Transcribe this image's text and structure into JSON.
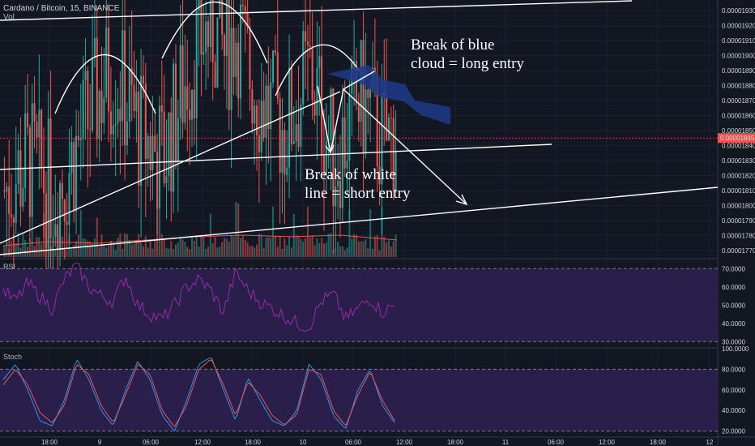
{
  "header": {
    "symbol_line": "Cardano / Bitcoin, 15, BINANCE",
    "vol_label": "Vol"
  },
  "indicators": {
    "rsi_label": "RSI",
    "stoch_label": "Stoch"
  },
  "annotations": {
    "long_entry": [
      "Break of blue",
      "cloud = long entry"
    ],
    "short_entry": [
      "Break of white",
      "line = short entry"
    ]
  },
  "colors": {
    "background": "#131722",
    "bull": "#26a69a",
    "bear": "#ef5350",
    "rsi_line": "#9c27b0",
    "rsi_band": "#2a1f4a",
    "stoch_k": "#2196f3",
    "stoch_d": "#ef5350",
    "cloud": "#1e3a8a",
    "annotation": "#ffffff",
    "last_price": "#ef5350"
  },
  "chart_data": [
    {
      "type": "candlestick",
      "title": "Cardano / Bitcoin, 15, BINANCE",
      "price_axis_ticks": [
        "0.00001930",
        "0.00001920",
        "0.00001910",
        "0.00001900",
        "0.00001890",
        "0.00001880",
        "0.00001870",
        "0.00001860",
        "0.00001850",
        "0.00001840",
        "0.00001830",
        "0.00001820",
        "0.00001810",
        "0.00001800",
        "0.00001790",
        "0.00001780",
        "0.00001770"
      ],
      "last_price": "0.00001845",
      "time_axis_ticks": [
        "18:00",
        "9",
        "06:00",
        "12:00",
        "18:00",
        "10",
        "06:00",
        "12:00",
        "18:00",
        "11",
        "06:00",
        "12:00",
        "18:00",
        "12"
      ],
      "ylim": [
        1.765e-05,
        1.935e-05
      ],
      "approx_close_path": [
        1.81e-05,
        1.82e-05,
        1.83e-05,
        1.82e-05,
        1.81e-05,
        1.82e-05,
        1.84e-05,
        1.86e-05,
        1.88e-05,
        1.89e-05,
        1.87e-05,
        1.85e-05,
        1.84e-05,
        1.83e-05,
        1.86e-05,
        1.89e-05,
        1.91e-05,
        1.92e-05,
        1.9e-05,
        1.92e-05,
        1.89e-05,
        1.87e-05,
        1.86e-05,
        1.85e-05,
        1.87e-05,
        1.89e-05,
        1.86e-05,
        1.83e-05,
        1.85e-05,
        1.87e-05,
        1.86e-05,
        1.84e-05,
        1.85e-05
      ]
    },
    {
      "type": "line",
      "title": "RSI",
      "y_axis_ticks": [
        "70.0000",
        "60.0000",
        "50.0000",
        "40.0000",
        "30.0000"
      ],
      "ylim": [
        27,
        75
      ],
      "band": [
        30,
        70
      ],
      "approx_values": [
        58,
        52,
        62,
        55,
        48,
        64,
        72,
        60,
        55,
        52,
        66,
        50,
        45,
        42,
        50,
        60,
        64,
        58,
        46,
        68,
        58,
        52,
        48,
        44,
        40,
        38,
        52,
        56,
        42,
        48,
        54,
        46,
        50
      ]
    },
    {
      "type": "line",
      "title": "Stoch",
      "y_axis_ticks": [
        "100.0000",
        "80.0000",
        "60.0000",
        "40.0000",
        "20.0000"
      ],
      "ylim": [
        15,
        100
      ],
      "band": [
        20,
        80
      ],
      "series": [
        {
          "approx_values": [
            70,
            85,
            60,
            30,
            25,
            50,
            90,
            70,
            40,
            25,
            60,
            88,
            70,
            35,
            20,
            50,
            85,
            92,
            60,
            30,
            72,
            50,
            30,
            25,
            40,
            85,
            70,
            35,
            22,
            60,
            80,
            45,
            28
          ]
        },
        {
          "approx_values": [
            65,
            80,
            65,
            38,
            28,
            45,
            85,
            75,
            45,
            28,
            55,
            85,
            75,
            40,
            24,
            45,
            80,
            90,
            65,
            35,
            68,
            55,
            35,
            26,
            36,
            80,
            75,
            40,
            25,
            55,
            78,
            50,
            30
          ]
        }
      ]
    }
  ]
}
